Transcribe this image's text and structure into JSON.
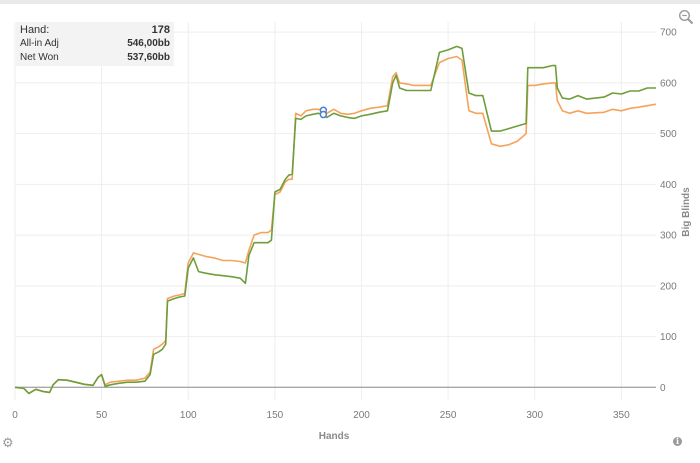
{
  "tooltip": {
    "hand_label": "Hand:",
    "hand_value": "178",
    "allin_label": "All-in Adj",
    "allin_value": "546,00bb",
    "netwon_label": "Net Won",
    "netwon_value": "537,60bb"
  },
  "icons": {
    "zoom": "magnifier-icon",
    "settings": "gear-icon",
    "info": "info-icon"
  },
  "chart_data": {
    "type": "line",
    "title": "",
    "xlabel": "Hands",
    "ylabel": "Big Blinds",
    "xlim": [
      0,
      370
    ],
    "ylim": [
      -25,
      720
    ],
    "x_ticks": [
      0,
      50,
      100,
      150,
      200,
      250,
      300,
      350
    ],
    "y_ticks": [
      0,
      100,
      200,
      300,
      400,
      500,
      600,
      700
    ],
    "grid": true,
    "colors": {
      "allin_adj": "#f5a35b",
      "net_won": "#6e9e3c",
      "zero_line": "#a8a8a8",
      "marker": "#4a7fd4"
    },
    "highlight": {
      "hand": 178,
      "allin_adj": 546.0,
      "net_won": 537.6
    },
    "series": [
      {
        "name": "All-in Adj",
        "points": [
          [
            0,
            0
          ],
          [
            5,
            -2
          ],
          [
            8,
            -12
          ],
          [
            12,
            -4
          ],
          [
            16,
            -8
          ],
          [
            20,
            -10
          ],
          [
            22,
            5
          ],
          [
            25,
            15
          ],
          [
            30,
            14
          ],
          [
            35,
            10
          ],
          [
            40,
            6
          ],
          [
            45,
            4
          ],
          [
            48,
            20
          ],
          [
            50,
            25
          ],
          [
            52,
            5
          ],
          [
            55,
            10
          ],
          [
            60,
            12
          ],
          [
            65,
            14
          ],
          [
            70,
            14
          ],
          [
            75,
            18
          ],
          [
            78,
            30
          ],
          [
            80,
            75
          ],
          [
            83,
            80
          ],
          [
            85,
            85
          ],
          [
            87,
            92
          ],
          [
            88,
            175
          ],
          [
            92,
            180
          ],
          [
            95,
            182
          ],
          [
            98,
            185
          ],
          [
            100,
            245
          ],
          [
            103,
            265
          ],
          [
            106,
            262
          ],
          [
            110,
            258
          ],
          [
            115,
            255
          ],
          [
            120,
            250
          ],
          [
            125,
            250
          ],
          [
            130,
            248
          ],
          [
            133,
            245
          ],
          [
            135,
            270
          ],
          [
            138,
            300
          ],
          [
            142,
            305
          ],
          [
            146,
            305
          ],
          [
            148,
            310
          ],
          [
            150,
            380
          ],
          [
            153,
            385
          ],
          [
            156,
            405
          ],
          [
            158,
            410
          ],
          [
            160,
            410
          ],
          [
            162,
            540
          ],
          [
            165,
            535
          ],
          [
            168,
            545
          ],
          [
            172,
            548
          ],
          [
            175,
            548
          ],
          [
            178,
            546
          ],
          [
            180,
            540
          ],
          [
            184,
            548
          ],
          [
            188,
            540
          ],
          [
            192,
            538
          ],
          [
            196,
            540
          ],
          [
            200,
            545
          ],
          [
            205,
            550
          ],
          [
            210,
            552
          ],
          [
            215,
            555
          ],
          [
            218,
            612
          ],
          [
            220,
            620
          ],
          [
            222,
            600
          ],
          [
            226,
            598
          ],
          [
            230,
            595
          ],
          [
            240,
            595
          ],
          [
            245,
            640
          ],
          [
            250,
            648
          ],
          [
            255,
            652
          ],
          [
            258,
            645
          ],
          [
            262,
            545
          ],
          [
            266,
            540
          ],
          [
            270,
            540
          ],
          [
            275,
            480
          ],
          [
            280,
            475
          ],
          [
            285,
            478
          ],
          [
            290,
            485
          ],
          [
            295,
            500
          ],
          [
            296,
            595
          ],
          [
            300,
            595
          ],
          [
            305,
            598
          ],
          [
            310,
            600
          ],
          [
            312,
            600
          ],
          [
            313,
            565
          ],
          [
            316,
            545
          ],
          [
            320,
            540
          ],
          [
            325,
            545
          ],
          [
            330,
            540
          ],
          [
            340,
            542
          ],
          [
            345,
            548
          ],
          [
            350,
            545
          ],
          [
            355,
            550
          ],
          [
            360,
            552
          ],
          [
            365,
            555
          ],
          [
            370,
            558
          ]
        ]
      },
      {
        "name": "Net Won",
        "points": [
          [
            0,
            0
          ],
          [
            5,
            -2
          ],
          [
            8,
            -12
          ],
          [
            12,
            -4
          ],
          [
            16,
            -8
          ],
          [
            20,
            -10
          ],
          [
            22,
            5
          ],
          [
            25,
            15
          ],
          [
            30,
            14
          ],
          [
            35,
            10
          ],
          [
            40,
            6
          ],
          [
            45,
            4
          ],
          [
            48,
            20
          ],
          [
            50,
            25
          ],
          [
            52,
            2
          ],
          [
            55,
            5
          ],
          [
            60,
            8
          ],
          [
            65,
            10
          ],
          [
            70,
            10
          ],
          [
            75,
            12
          ],
          [
            78,
            25
          ],
          [
            80,
            65
          ],
          [
            83,
            70
          ],
          [
            85,
            75
          ],
          [
            87,
            85
          ],
          [
            88,
            170
          ],
          [
            92,
            175
          ],
          [
            95,
            178
          ],
          [
            98,
            180
          ],
          [
            100,
            235
          ],
          [
            103,
            255
          ],
          [
            106,
            228
          ],
          [
            110,
            225
          ],
          [
            115,
            222
          ],
          [
            120,
            220
          ],
          [
            125,
            218
          ],
          [
            130,
            215
          ],
          [
            133,
            205
          ],
          [
            135,
            260
          ],
          [
            138,
            285
          ],
          [
            142,
            285
          ],
          [
            146,
            285
          ],
          [
            148,
            290
          ],
          [
            150,
            385
          ],
          [
            153,
            390
          ],
          [
            156,
            410
          ],
          [
            158,
            418
          ],
          [
            160,
            420
          ],
          [
            162,
            530
          ],
          [
            165,
            528
          ],
          [
            168,
            535
          ],
          [
            172,
            538
          ],
          [
            175,
            540
          ],
          [
            178,
            538
          ],
          [
            180,
            532
          ],
          [
            184,
            540
          ],
          [
            188,
            535
          ],
          [
            192,
            532
          ],
          [
            196,
            530
          ],
          [
            200,
            535
          ],
          [
            205,
            538
          ],
          [
            210,
            542
          ],
          [
            215,
            545
          ],
          [
            218,
            600
          ],
          [
            220,
            615
          ],
          [
            222,
            590
          ],
          [
            226,
            585
          ],
          [
            230,
            585
          ],
          [
            240,
            585
          ],
          [
            245,
            660
          ],
          [
            250,
            665
          ],
          [
            255,
            672
          ],
          [
            258,
            668
          ],
          [
            262,
            580
          ],
          [
            266,
            575
          ],
          [
            270,
            575
          ],
          [
            275,
            505
          ],
          [
            280,
            505
          ],
          [
            285,
            510
          ],
          [
            290,
            515
          ],
          [
            295,
            520
          ],
          [
            296,
            630
          ],
          [
            300,
            630
          ],
          [
            305,
            630
          ],
          [
            310,
            634
          ],
          [
            312,
            634
          ],
          [
            313,
            590
          ],
          [
            316,
            570
          ],
          [
            320,
            568
          ],
          [
            325,
            575
          ],
          [
            330,
            568
          ],
          [
            340,
            572
          ],
          [
            345,
            580
          ],
          [
            350,
            578
          ],
          [
            355,
            584
          ],
          [
            360,
            584
          ],
          [
            365,
            590
          ],
          [
            370,
            590
          ]
        ]
      }
    ]
  }
}
